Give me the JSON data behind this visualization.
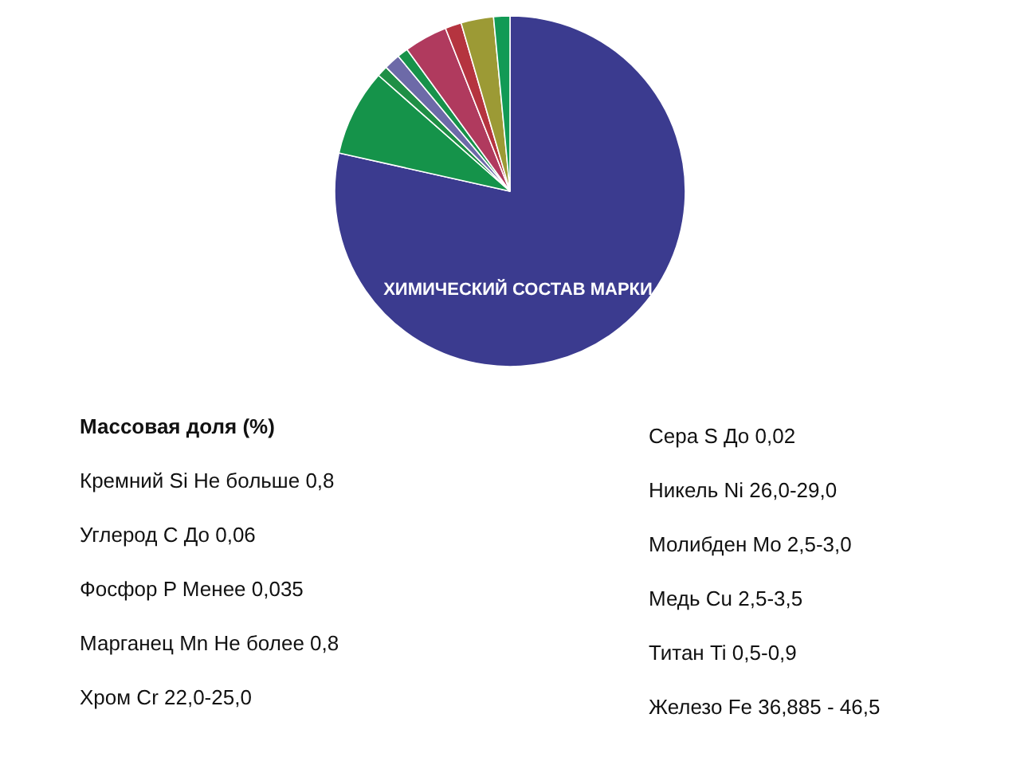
{
  "chart_data": {
    "type": "pie",
    "title": "ХИМИЧЕСКИЙ СОСТАВ МАРКИ",
    "categories": [
      null,
      null,
      null,
      null,
      null,
      null,
      null,
      null,
      null
    ],
    "values": [
      78.5,
      8,
      1,
      1.5,
      1,
      4,
      1.5,
      3,
      1.5
    ],
    "colors": [
      "#3b3b8f",
      "#15934a",
      "#1f8f45",
      "#6d6aa8",
      "#17924a",
      "#b03a5e",
      "#b5343f",
      "#9c9a35",
      "#129a55"
    ],
    "annotations": [
      "Массовая доля (%)",
      "Кремний Si Не больше 0,8",
      "Углерод С До 0,06",
      "Фосфор P Менее 0,035",
      "Марганец Mn Не более 0,8",
      "Хром Cr 22,0-25,0",
      "Сера S До 0,02",
      "Никель Ni 26,0-29,0",
      "Молибден Mo 2,5-3,0",
      "Медь Cu 2,5-3,5",
      "Титан Ti 0,5-0,9",
      "Железо Fe 36,885 - 46,5"
    ]
  }
}
